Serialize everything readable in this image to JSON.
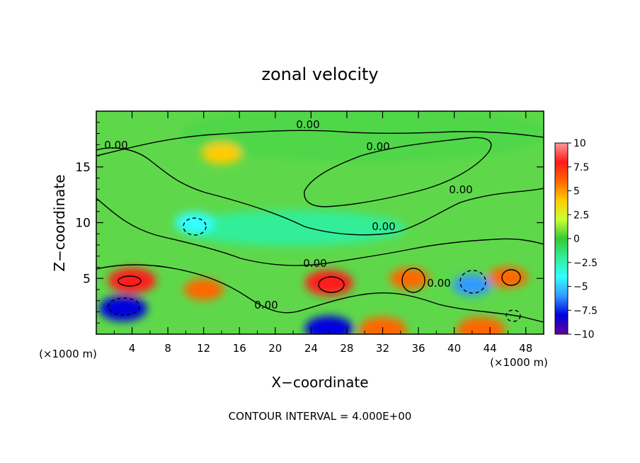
{
  "chart_data": {
    "type": "heatmap",
    "title": "zonal velocity",
    "xlabel": "X−coordinate",
    "ylabel": "Z−coordinate",
    "x_unit_left": "(×1000 m)",
    "x_unit_right": "(×1000 m)",
    "x_ticks": [
      4,
      8,
      12,
      16,
      20,
      24,
      28,
      32,
      36,
      40,
      44,
      48
    ],
    "y_ticks": [
      5,
      10,
      15
    ],
    "xlim": [
      0,
      50
    ],
    "ylim": [
      0,
      20
    ],
    "contour_interval_text": "CONTOUR INTERVAL = 4.000E+00",
    "contour_labels": [
      "0.00",
      "0.00",
      "0.00",
      "0.00",
      "0.00",
      "0.00",
      "0.00",
      "0.00"
    ],
    "colorbar": {
      "ticks": [
        "10",
        "7.5",
        "5",
        "2.5",
        "0",
        "−2.5",
        "−5",
        "−7.5",
        "−10"
      ],
      "range": [
        -10,
        10
      ],
      "colors": [
        "#ff9999",
        "#ff1a1a",
        "#ff6600",
        "#ffcc00",
        "#ccff33",
        "#33cc33",
        "#33ee99",
        "#33ffff",
        "#3399ff",
        "#0000dd",
        "#660099"
      ]
    },
    "features": [
      {
        "x": 4,
        "z": 4.8,
        "value": 8.5
      },
      {
        "x": 26,
        "z": 4.6,
        "value": 8.5
      },
      {
        "x": 12,
        "z": 4.0,
        "value": 5.5
      },
      {
        "x": 35,
        "z": 5.0,
        "value": 5.5
      },
      {
        "x": 46,
        "z": 5.1,
        "value": 5.5
      },
      {
        "x": 14,
        "z": 16.2,
        "value": 4.5
      },
      {
        "x": 3,
        "z": 2.3,
        "value": -8.5
      },
      {
        "x": 42,
        "z": 4.4,
        "value": -6
      },
      {
        "x": 26,
        "z": 0.5,
        "value": -7
      },
      {
        "x": 11,
        "z": 10.0,
        "value": -3.5
      },
      {
        "x": 32,
        "z": 0.4,
        "value": 7
      },
      {
        "x": 43,
        "z": 0.4,
        "value": 7
      }
    ]
  }
}
